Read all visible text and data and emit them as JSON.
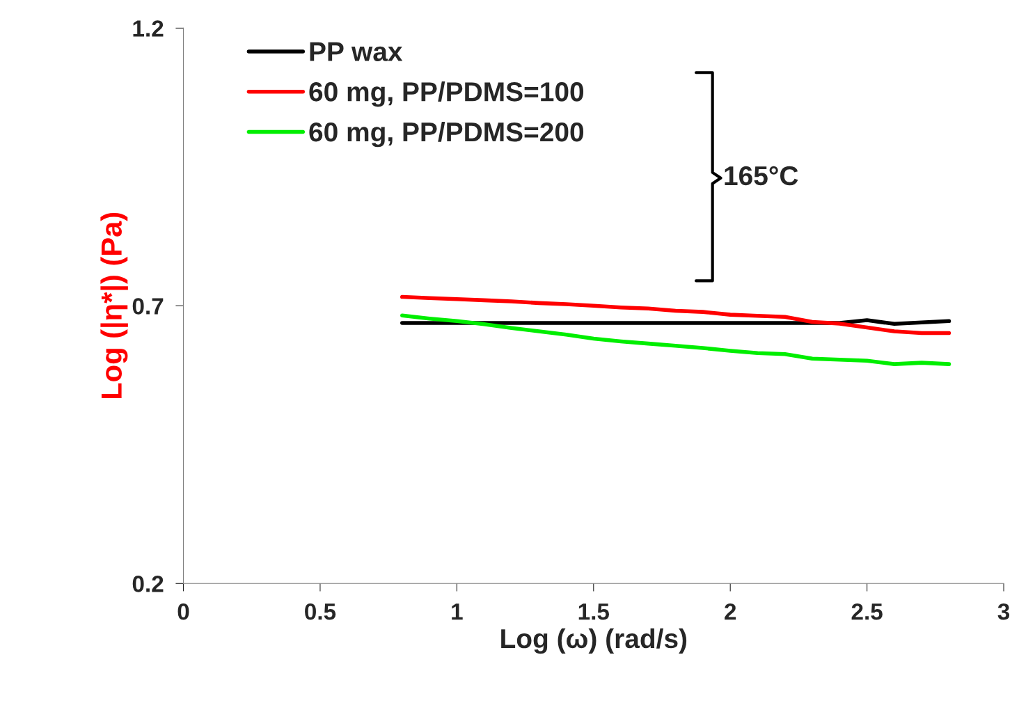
{
  "chart_data": {
    "type": "line",
    "xlabel": "Log (ω) (rad/s)",
    "ylabel": "Log (|η*|) (Pa)",
    "x": [
      0.8,
      0.9,
      1.0,
      1.1,
      1.2,
      1.3,
      1.4,
      1.5,
      1.6,
      1.7,
      1.8,
      1.9,
      2.0,
      2.1,
      2.2,
      2.3,
      2.4,
      2.5,
      2.6,
      2.7,
      2.8
    ],
    "series": [
      {
        "name": "PP wax",
        "color": "#000000",
        "values": [
          0.669,
          0.669,
          0.669,
          0.669,
          0.669,
          0.669,
          0.669,
          0.669,
          0.669,
          0.669,
          0.669,
          0.669,
          0.669,
          0.669,
          0.669,
          0.669,
          0.669,
          0.674,
          0.6675,
          0.67,
          0.6725
        ]
      },
      {
        "name": "60 mg, PP/PDMS=100",
        "color": "#ff0000",
        "values": [
          0.716,
          0.714,
          0.712,
          0.71,
          0.708,
          0.705,
          0.703,
          0.7,
          0.697,
          0.695,
          0.691,
          0.689,
          0.684,
          0.682,
          0.68,
          0.671,
          0.668,
          0.661,
          0.654,
          0.651,
          0.651
        ]
      },
      {
        "name": "60 mg, PP/PDMS=200",
        "color": "#00ee00",
        "values": [
          0.6825,
          0.677,
          0.6725,
          0.667,
          0.66,
          0.654,
          0.648,
          0.641,
          0.636,
          0.632,
          0.628,
          0.624,
          0.619,
          0.615,
          0.613,
          0.605,
          0.603,
          0.601,
          0.595,
          0.5975,
          0.595
        ]
      }
    ],
    "xlim": [
      0,
      3
    ],
    "ylim": [
      0.2,
      1.2
    ],
    "xticks": [
      0,
      0.5,
      1,
      1.5,
      2,
      2.5,
      3
    ],
    "yticks": [
      0.2,
      0.7,
      1.2
    ],
    "annotations": [
      "165°C"
    ],
    "grid": false,
    "legend": "top left"
  }
}
